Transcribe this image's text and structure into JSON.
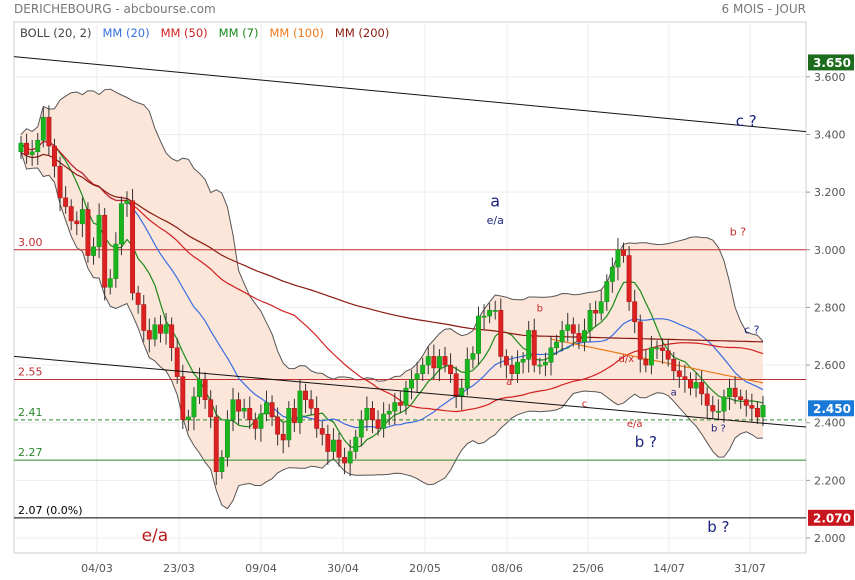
{
  "header": {
    "title": "DERICHEBOURG - abcbourse.com",
    "period": "6 MOIS - JOUR"
  },
  "legend": [
    {
      "label": "BOLL (20, 2)",
      "color": "#444444"
    },
    {
      "label": "MM (20)",
      "color": "#3a6fe0"
    },
    {
      "label": "MM (50)",
      "color": "#d22222"
    },
    {
      "label": "MM (7)",
      "color": "#1a8a1a"
    },
    {
      "label": "MM (100)",
      "color": "#ee7a1c"
    },
    {
      "label": "MM (200)",
      "color": "#8a1a10"
    }
  ],
  "chart_data": {
    "type": "candlestick",
    "x_ticks": [
      "04/03",
      "23/03",
      "09/04",
      "30/04",
      "20/05",
      "08/06",
      "25/06",
      "14/07",
      "31/07"
    ],
    "y_ticks": [
      "3.600",
      "3.400",
      "3.200",
      "3.000",
      "2.800",
      "2.600",
      "2.400",
      "2.200",
      "2.000"
    ],
    "ylim": [
      1.97,
      3.72
    ],
    "price_badges": [
      {
        "label": "3.650",
        "value": 3.65,
        "color": "#1d6b1d"
      },
      {
        "label": "2.450",
        "value": 2.45,
        "color": "#1a78d6"
      },
      {
        "label": "2.070",
        "value": 2.07,
        "color": "#c8171e"
      }
    ],
    "levels": [
      {
        "label": "3.00",
        "value": 3.0,
        "color": "#c03030",
        "style": "solid"
      },
      {
        "label": "2.55",
        "value": 2.55,
        "color": "#c03030",
        "style": "solid"
      },
      {
        "label": "2.41",
        "value": 2.41,
        "color": "#2a8a2a",
        "style": "dashed"
      },
      {
        "label": "2.27",
        "value": 2.27,
        "color": "#2a8a2a",
        "style": "solid"
      },
      {
        "label": "2.07 (0.0%)",
        "value": 2.07,
        "color": "#000000",
        "style": "solid"
      }
    ],
    "trendlines": [
      {
        "from": [
          0,
          3.67
        ],
        "to": [
          134,
          3.41
        ]
      },
      {
        "from": [
          0,
          2.63
        ],
        "to": [
          134,
          2.385
        ]
      }
    ],
    "annotations": [
      {
        "text": "a",
        "x": 85,
        "y": 3.15,
        "color": "#1a237e",
        "size": 16
      },
      {
        "text": "e/a",
        "x": 85,
        "y": 3.09,
        "color": "#1a237e",
        "size": 11
      },
      {
        "text": "b",
        "x": 93,
        "y": 2.785,
        "color": "#c62828",
        "size": 10
      },
      {
        "text": "a",
        "x": 87.5,
        "y": 2.53,
        "color": "#c62828",
        "size": 10
      },
      {
        "text": "d/x",
        "x": 108.5,
        "y": 2.61,
        "color": "#c62828",
        "size": 10
      },
      {
        "text": "c",
        "x": 101,
        "y": 2.455,
        "color": "#c62828",
        "size": 10
      },
      {
        "text": "a",
        "x": 117,
        "y": 2.495,
        "color": "#1a237e",
        "size": 10
      },
      {
        "text": "e/a",
        "x": 110,
        "y": 2.385,
        "color": "#c62828",
        "size": 10
      },
      {
        "text": "b ?",
        "x": 112,
        "y": 2.315,
        "color": "#1a237e",
        "size": 15
      },
      {
        "text": "b ?",
        "x": 125,
        "y": 2.37,
        "color": "#1a237e",
        "size": 10
      },
      {
        "text": "e/a",
        "x": 24,
        "y": 1.99,
        "color": "#b71c1c",
        "size": 17
      },
      {
        "text": "c ?",
        "x": 130,
        "y": 3.43,
        "color": "#1a237e",
        "size": 15
      },
      {
        "text": "b ?",
        "x": 128.5,
        "y": 3.05,
        "color": "#c62828",
        "size": 11
      },
      {
        "text": "c ?",
        "x": 131,
        "y": 2.71,
        "color": "#1a237e",
        "size": 11
      },
      {
        "text": "b ?",
        "x": 125,
        "y": 2.02,
        "color": "#1a237e",
        "size": 15
      }
    ],
    "closes": [
      3.37,
      3.33,
      3.34,
      3.38,
      3.46,
      3.36,
      3.29,
      3.18,
      3.15,
      3.1,
      3.09,
      3.14,
      2.98,
      3.01,
      3.12,
      2.87,
      2.9,
      3.02,
      3.16,
      3.17,
      2.85,
      2.81,
      2.72,
      2.69,
      2.74,
      2.71,
      2.74,
      2.66,
      2.56,
      2.41,
      2.42,
      2.49,
      2.55,
      2.48,
      2.42,
      2.23,
      2.28,
      2.41,
      2.48,
      2.44,
      2.45,
      2.41,
      2.38,
      2.43,
      2.47,
      2.42,
      2.36,
      2.34,
      2.45,
      2.4,
      2.51,
      2.48,
      2.45,
      2.38,
      2.36,
      2.3,
      2.34,
      2.28,
      2.26,
      2.3,
      2.35,
      2.41,
      2.45,
      2.41,
      2.38,
      2.43,
      2.44,
      2.47,
      2.46,
      2.52,
      2.55,
      2.57,
      2.6,
      2.63,
      2.59,
      2.63,
      2.6,
      2.57,
      2.49,
      2.52,
      2.62,
      2.64,
      2.77,
      2.77,
      2.79,
      2.79,
      2.63,
      2.6,
      2.57,
      2.61,
      2.62,
      2.72,
      2.6,
      2.6,
      2.61,
      2.66,
      2.68,
      2.72,
      2.74,
      2.71,
      2.68,
      2.72,
      2.79,
      2.78,
      2.82,
      2.89,
      2.94,
      3.0,
      2.98,
      2.82,
      2.75,
      2.62,
      2.6,
      2.66,
      2.66,
      2.65,
      2.62,
      2.58,
      2.56,
      2.55,
      2.52,
      2.54,
      2.5,
      2.46,
      2.44,
      2.44,
      2.49,
      2.52,
      2.49,
      2.48,
      2.46,
      2.45,
      2.42,
      2.46
    ]
  }
}
